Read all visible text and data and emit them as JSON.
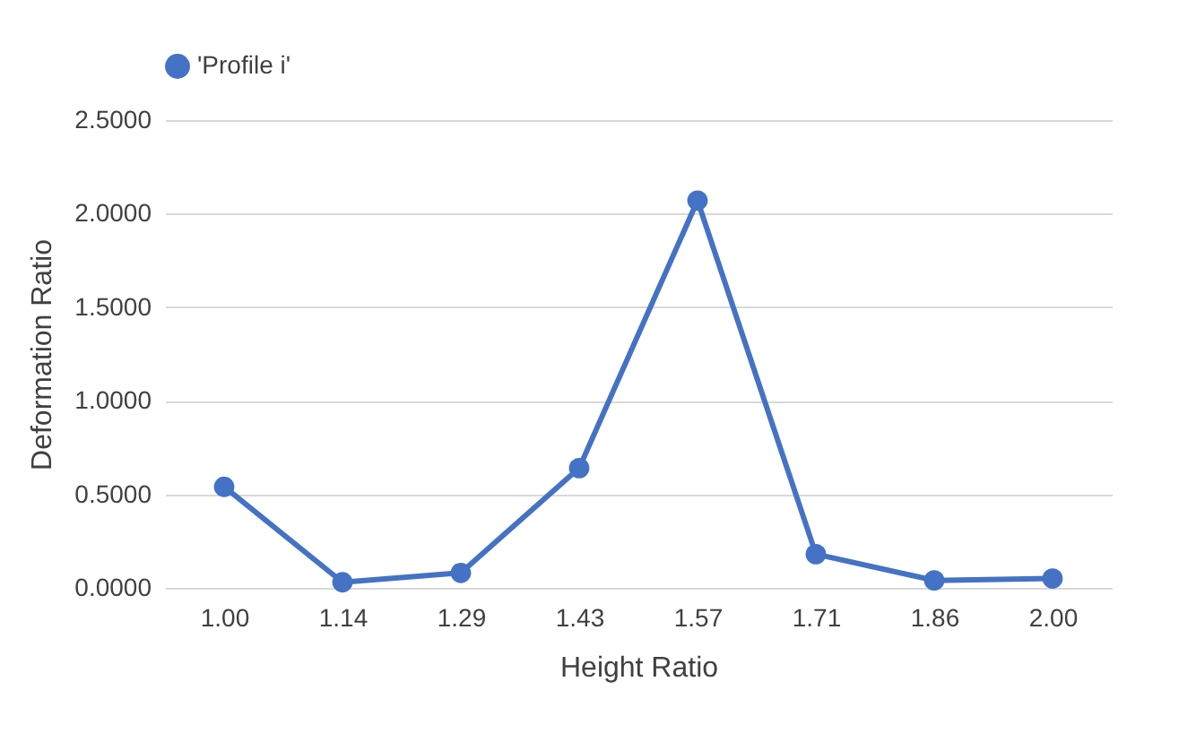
{
  "chart_data": {
    "type": "line",
    "xlabel": "Height Ratio",
    "ylabel": "Deformation Ratio",
    "categories": [
      "1.00",
      "1.14",
      "1.29",
      "1.43",
      "1.57",
      "1.71",
      "1.86",
      "2.00"
    ],
    "series": [
      {
        "name": "'Profile i'",
        "color": "#4472c4",
        "values": [
          0.54,
          0.03,
          0.08,
          0.64,
          2.07,
          0.18,
          0.04,
          0.05
        ]
      }
    ],
    "ylim": [
      0,
      2.5
    ],
    "yticks": [
      {
        "value": 0,
        "label": "0.0000"
      },
      {
        "value": 0.5,
        "label": "0.5000"
      },
      {
        "value": 1,
        "label": "1.0000"
      },
      {
        "value": 1.5,
        "label": "1.5000"
      },
      {
        "value": 2,
        "label": "2.0000"
      },
      {
        "value": 2.5,
        "label": "2.5000"
      }
    ],
    "grid": "y",
    "legend": "top",
    "marker": "circle"
  }
}
